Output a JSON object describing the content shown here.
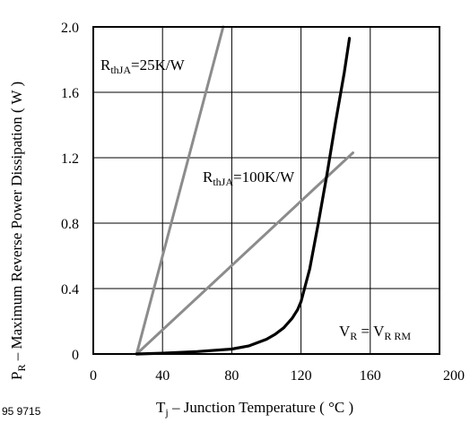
{
  "chart_data": {
    "type": "line",
    "xlabel": {
      "main": "T",
      "sub": "j",
      "rest": " – Junction Temperature ( °C )"
    },
    "ylabel": {
      "main": "P",
      "sub": "R",
      "rest": " – Maximum Reverse Power Dissipation ( W )"
    },
    "xlim": [
      0,
      200
    ],
    "ylim": [
      0,
      2.0
    ],
    "x_ticks": [
      "0",
      "40",
      "80",
      "120",
      "160",
      "200"
    ],
    "y_ticks": [
      "0",
      "0.4",
      "0.8",
      "1.2",
      "1.6",
      "2.0"
    ],
    "grid": true,
    "figure_id": "95 9715",
    "series": [
      {
        "name": "RthJA=25K/W",
        "color": "#8c8c8c",
        "x": [
          25,
          75
        ],
        "y": [
          0,
          2.0
        ]
      },
      {
        "name": "RthJA=100K/W",
        "color": "#8c8c8c",
        "x": [
          25,
          150
        ],
        "y": [
          0,
          1.23
        ]
      },
      {
        "name": "VR=VRRM",
        "color": "#000000",
        "x": [
          25,
          40,
          60,
          80,
          90,
          100,
          105,
          110,
          115,
          118,
          120,
          125,
          130,
          135,
          140,
          145,
          148
        ],
        "y": [
          0,
          0.005,
          0.015,
          0.03,
          0.05,
          0.09,
          0.12,
          0.16,
          0.22,
          0.27,
          0.32,
          0.52,
          0.8,
          1.1,
          1.42,
          1.72,
          1.93
        ]
      }
    ],
    "annotations": {
      "r25": {
        "main": "R",
        "sub": "thJA",
        "rest": "=25K/W"
      },
      "r100": {
        "main": "R",
        "sub": "thJA",
        "rest": "=100K/W"
      },
      "vr": {
        "a": "V",
        "asub": "R",
        "eq": " = ",
        "b": "V",
        "bsub": "R RM"
      }
    }
  }
}
